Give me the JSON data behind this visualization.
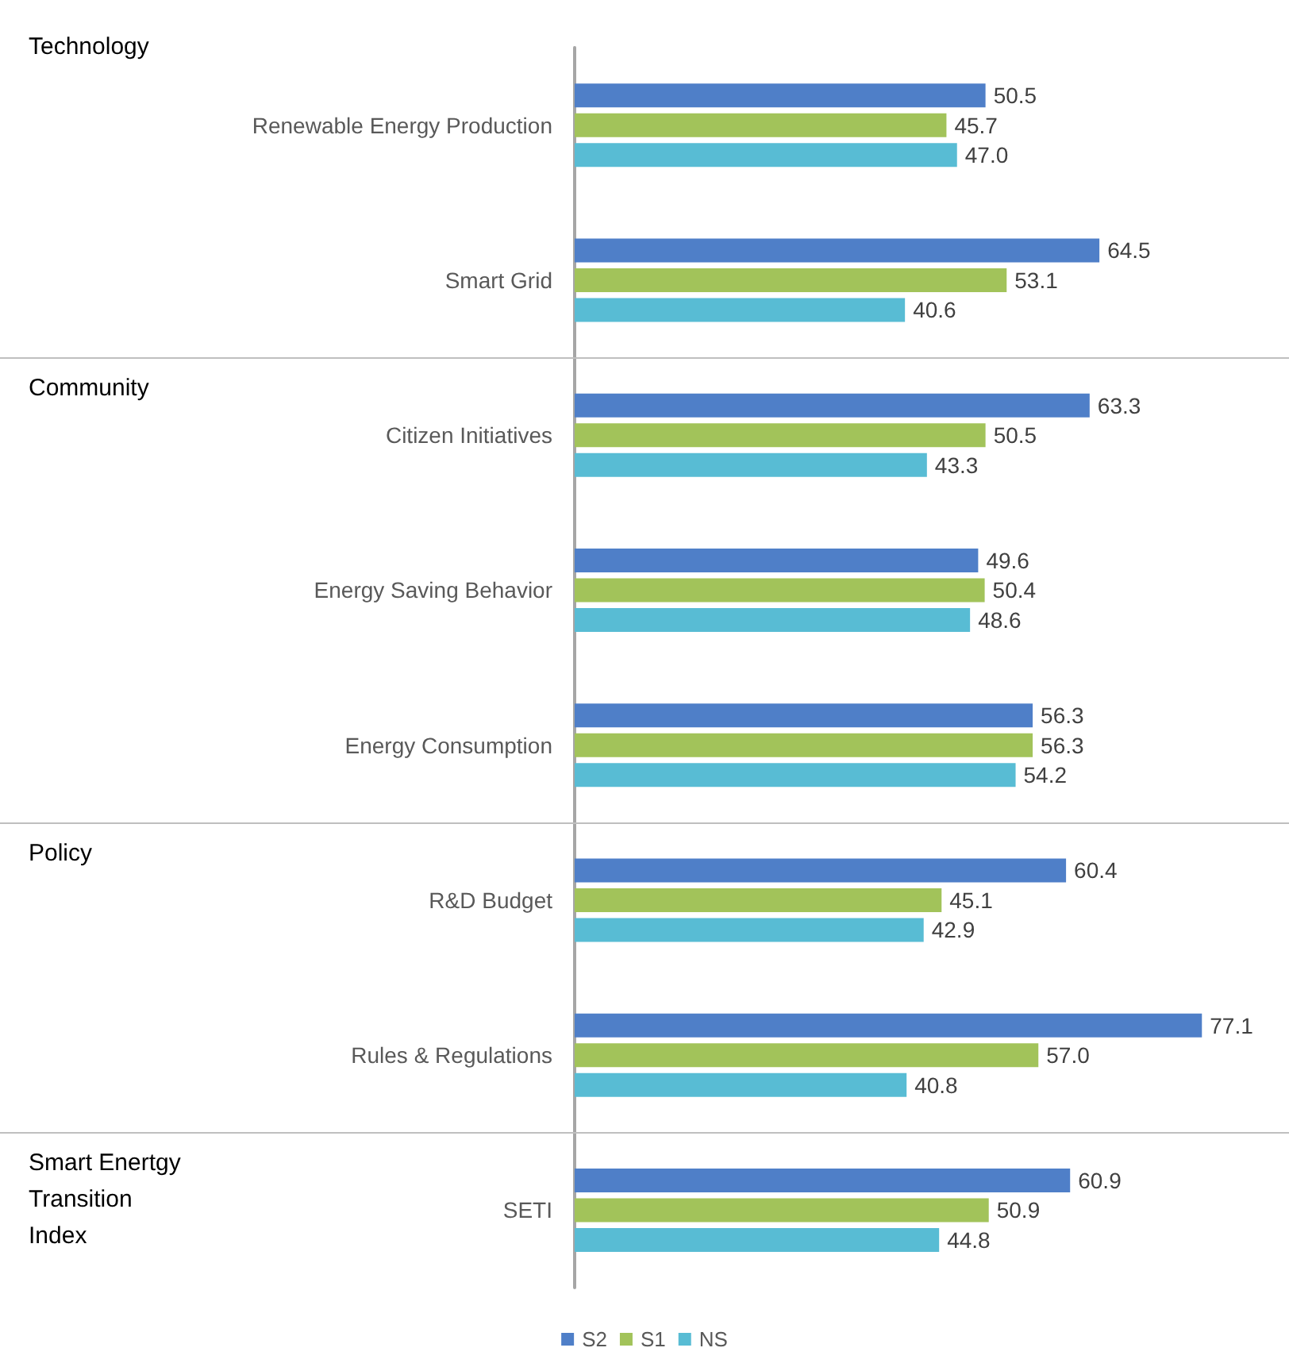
{
  "chart_data": {
    "type": "bar",
    "orientation": "horizontal",
    "categories": [
      "Renewable Energy Production",
      "Smart Grid",
      "Citizen Initiatives",
      "Energy Saving Behavior",
      "Energy Consumption",
      "R&D Budget",
      "Rules & Regulations",
      "SETI"
    ],
    "series": [
      {
        "name": "S2",
        "color": "#4f7fc8",
        "values": [
          50.5,
          64.5,
          63.3,
          49.6,
          56.3,
          60.4,
          77.1,
          60.9
        ],
        "value_labels": [
          "50.5",
          "64.5",
          "63.3",
          "49.6",
          "56.3",
          "60.4",
          "77.1",
          "60.9"
        ]
      },
      {
        "name": "S1",
        "color": "#a2c35a",
        "values": [
          45.7,
          53.1,
          50.5,
          50.4,
          56.3,
          45.1,
          57.0,
          50.9
        ],
        "value_labels": [
          "45.7",
          "53.1",
          "50.5",
          "50.4",
          "56.3",
          "45.1",
          "57.0",
          "50.9"
        ]
      },
      {
        "name": "NS",
        "color": "#58bcd4",
        "values": [
          47.0,
          40.6,
          43.3,
          48.6,
          54.2,
          42.9,
          40.8,
          44.8
        ],
        "value_labels": [
          "47.0",
          "40.6",
          "43.3",
          "48.6",
          "54.2",
          "42.9",
          "40.8",
          "44.8"
        ]
      }
    ],
    "annotations": [
      "Technology",
      "Community",
      "Policy",
      "Smart Enertgy Transition Index"
    ],
    "legend": "bottom",
    "grid": false
  }
}
